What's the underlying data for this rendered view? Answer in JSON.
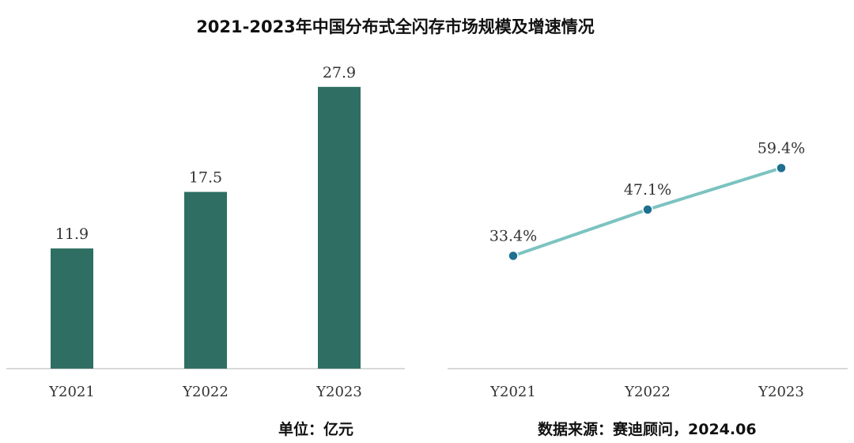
{
  "title": "2021-2023年中国分布式全闪存市场规模及增速情况",
  "unit_label": "单位：亿元",
  "source_label": "数据来源：赛迪顾问，2024.06",
  "colors": {
    "bar": "#2f6f63",
    "line": "#7cc3c0",
    "marker": "#1f6f8f",
    "axis": "#cccccc"
  },
  "chart_data": [
    {
      "type": "bar",
      "categories": [
        "Y2021",
        "Y2022",
        "Y2023"
      ],
      "values": [
        11.9,
        17.5,
        27.9
      ],
      "value_labels": [
        "11.9",
        "17.5",
        "27.9"
      ],
      "ylim": [
        0,
        30
      ]
    },
    {
      "type": "line",
      "categories": [
        "Y2021",
        "Y2022",
        "Y2023"
      ],
      "values": [
        33.4,
        47.1,
        59.4
      ],
      "value_labels": [
        "33.4%",
        "47.1%",
        "59.4%"
      ],
      "ylim": [
        0,
        70
      ]
    }
  ]
}
